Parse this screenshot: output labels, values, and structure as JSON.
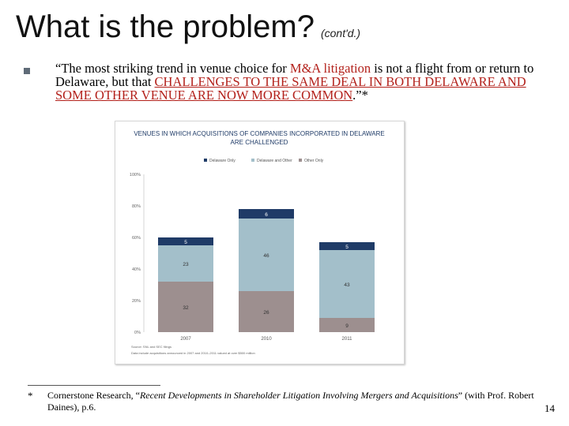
{
  "slide": {
    "title": "What is the problem?",
    "title_suffix": "(cont'd.)",
    "bullet": {
      "quote_open": "“The most striking trend in venue choice for ",
      "ma": "M&A litigation",
      "mid": " is not a flight from or return to Delaware, but that ",
      "emph": "CHALLENGES TO THE SAME DEAL IN BOTH DELAWARE AND SOME OTHER VENUE ARE NOW MORE COMMON",
      "close": ".”*"
    },
    "footnote": {
      "marker": "*",
      "before": "Cornerstone Research, “",
      "italic": "Recent Developments in Shareholder Litigation Involving Mergers and Acquisitions",
      "after": "” (with Prof. Robert Daines), p.6."
    },
    "page_number": "14"
  },
  "chart_data": {
    "type": "bar",
    "stacked": true,
    "title": "VENUES IN WHICH ACQUISITIONS OF COMPANIES INCORPORATED IN DELAWARE ARE CHALLENGED",
    "categories": [
      "2007",
      "2010",
      "2011"
    ],
    "series": [
      {
        "name": "Delaware Only",
        "color": "#1f3b67",
        "values": [
          5,
          6,
          5
        ]
      },
      {
        "name": "Delaware and Other",
        "color": "#a3bfca",
        "values": [
          23,
          46,
          43
        ]
      },
      {
        "name": "Other Only",
        "color": "#9d8f8f",
        "values": [
          32,
          26,
          9
        ]
      }
    ],
    "stack_order_bottom_to_top": [
      "Other Only",
      "Delaware and Other",
      "Delaware Only"
    ],
    "y_ticks": [
      "0%",
      "20%",
      "40%",
      "60%",
      "80%",
      "100%"
    ],
    "ylim": [
      0,
      100
    ],
    "legend": "top",
    "notes": [
      "Source: SNL and SEC filings",
      "Data include acquisitions announced in 2007 and 2010–2011 valued at over $500 million"
    ]
  }
}
